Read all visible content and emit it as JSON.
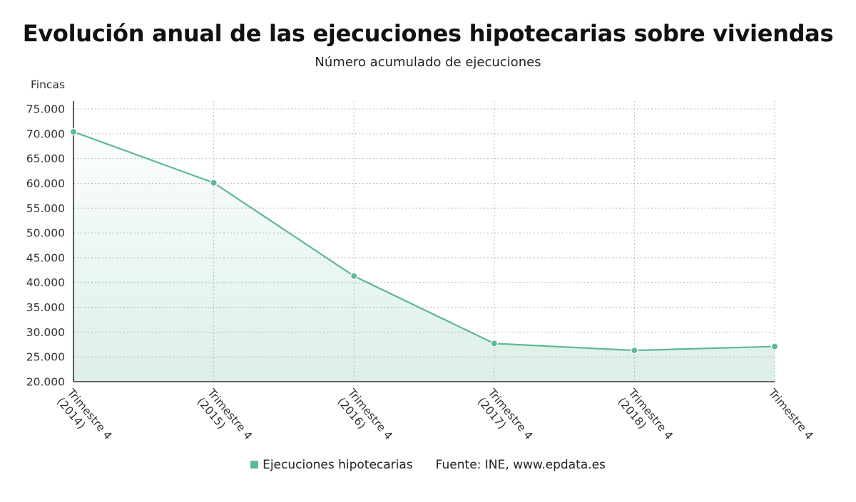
{
  "title": "Evolución anual de las ejecuciones hipotecarias sobre viviendas",
  "subtitle": "Número acumulado de ejecuciones",
  "source": "Fuente: INE, www.epdata.es",
  "colors": {
    "line": "#5fb893",
    "marker": "#5fb893",
    "fill": "#5fb893",
    "grid": "#bbbbbb",
    "axis": "#333333"
  },
  "chart_data": {
    "type": "area",
    "title": "Evolución anual de las ejecuciones hipotecarias sobre viviendas",
    "subtitle": "Número acumulado de ejecuciones",
    "ylabel": "Fincas",
    "xlabel": "",
    "categories": [
      [
        "Trimestre 4",
        "(2014)"
      ],
      [
        "Trimestre 4",
        "(2015)"
      ],
      [
        "Trimestre 4",
        "(2016)"
      ],
      [
        "Trimestre 4",
        "(2017)"
      ],
      [
        "Trimestre 4",
        "(2018)"
      ],
      [
        "Trimestre 4"
      ]
    ],
    "series": [
      {
        "name": "Ejecuciones hipotecarias",
        "values": [
          70400,
          60100,
          41300,
          27700,
          26300,
          27100
        ]
      }
    ],
    "ylim": [
      20000,
      75000
    ],
    "yticks": [
      20000,
      25000,
      30000,
      35000,
      40000,
      45000,
      50000,
      55000,
      60000,
      65000,
      70000,
      75000
    ],
    "ytick_labels": [
      "20.000",
      "25.000",
      "30.000",
      "35.000",
      "40.000",
      "45.000",
      "50.000",
      "55.000",
      "60.000",
      "65.000",
      "70.000",
      "75.000"
    ],
    "grid": true,
    "legend_position": "bottom"
  }
}
